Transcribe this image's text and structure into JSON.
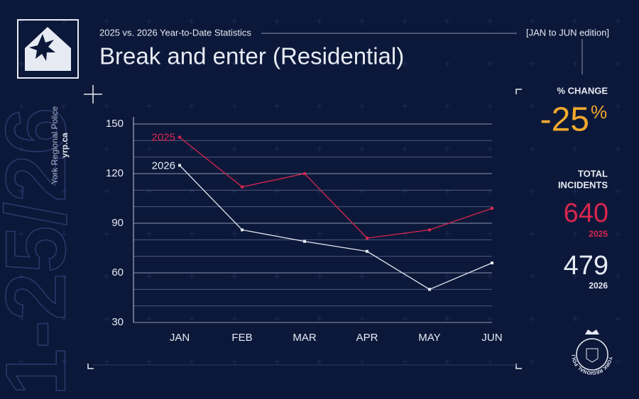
{
  "chart_data": {
    "type": "line",
    "subtitle": "2025 vs. 2026 Year-to-Date Statistics",
    "edition": "[JAN to JUN edition]",
    "title": "Break and enter (Residential)",
    "source": "York Regional Police",
    "website": "yrp.ca",
    "watermark": "1-25/26",
    "categories": [
      "JAN",
      "FEB",
      "MAR",
      "APR",
      "MAY",
      "JUN"
    ],
    "series": [
      {
        "name": "2025",
        "color": "#d8264f",
        "values": [
          142,
          112,
          120,
          81,
          86,
          99
        ]
      },
      {
        "name": "2026",
        "color": "#e6eaf3",
        "values": [
          125,
          86,
          79,
          73,
          50,
          66
        ]
      }
    ],
    "ylim": [
      30,
      150
    ],
    "yticks": [
      30,
      60,
      90,
      120,
      150
    ],
    "minor_yticks": [
      40,
      50,
      70,
      80,
      100,
      110,
      130,
      140
    ],
    "grid": true,
    "change_label": "% CHANGE",
    "change": -25,
    "change_unit": "%",
    "change_color": "#f0a92e",
    "totals_label_1": "TOTAL",
    "totals_label_2": "INCIDENTS",
    "totals": [
      640,
      479
    ],
    "emblem_text": "YORK REGIONAL POLICE"
  }
}
